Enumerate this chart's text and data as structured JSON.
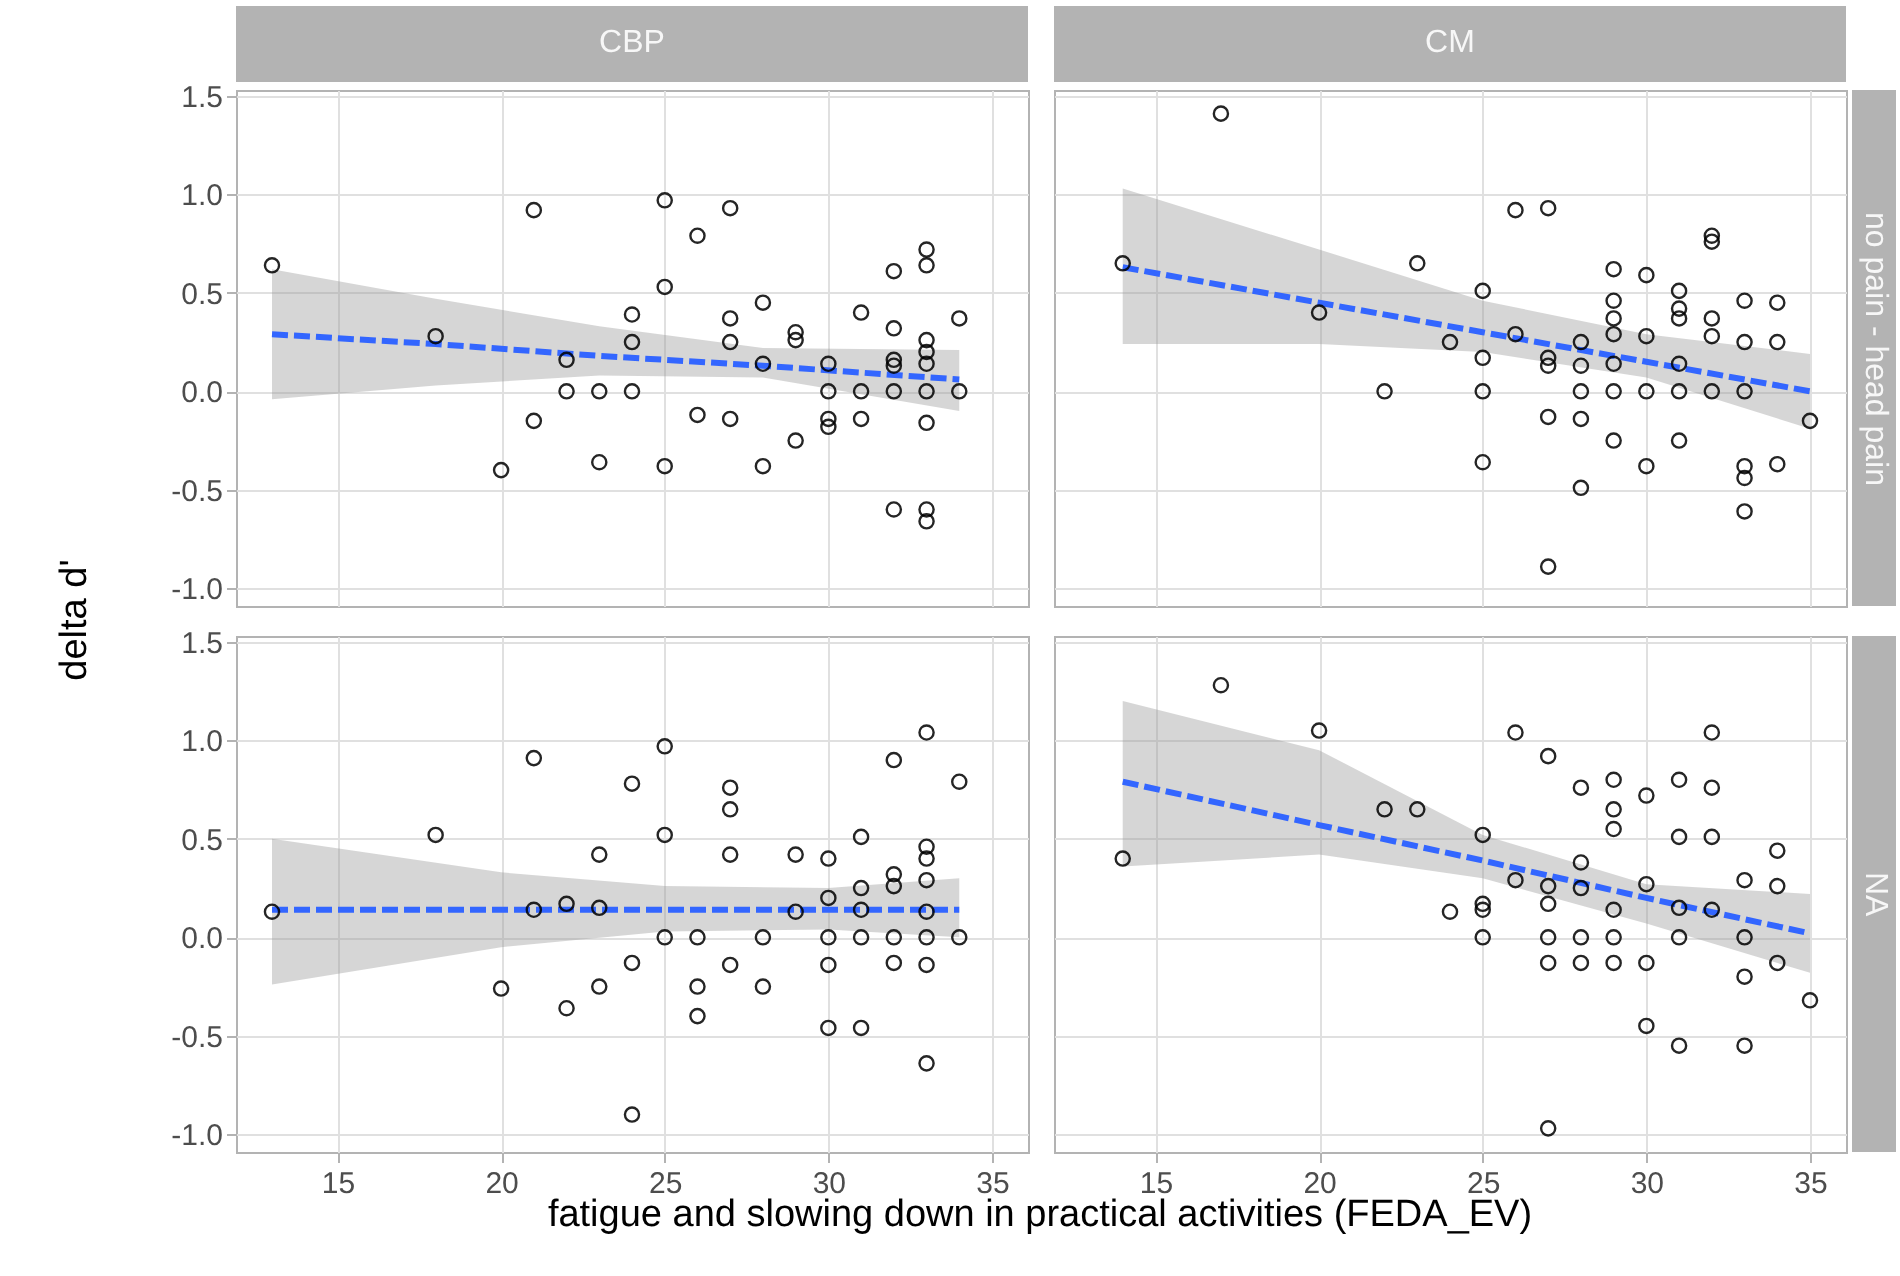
{
  "chart_data": [
    {
      "type": "scatter",
      "title": "CBP",
      "ylabel": "delta d'",
      "xlim": [
        11.9,
        36.1
      ],
      "ylim": [
        -1.09,
        1.53
      ],
      "xticks": [
        15,
        20,
        25,
        30,
        35
      ],
      "yticks": [
        {
          "value": -1,
          "label": "-1.0"
        },
        -0.5,
        {
          "value": 0,
          "label": "0.0"
        },
        0.5,
        {
          "value": 1,
          "label": "1.0"
        },
        1.5
      ],
      "grid": true,
      "tick_labels": "y",
      "series": [
        {
          "type": "scatter",
          "marker": "circle",
          "color": "#000000",
          "x": [
            13,
            18,
            21,
            21,
            20,
            22,
            22,
            23,
            23,
            24,
            24,
            24,
            25,
            25,
            25,
            26,
            26,
            27,
            27,
            27,
            27,
            28,
            28,
            28,
            29,
            29,
            29,
            30,
            30,
            30,
            30,
            31,
            31,
            31,
            32,
            32,
            32,
            32,
            32,
            32,
            33,
            33,
            33,
            33,
            33,
            33,
            33,
            33,
            33,
            34,
            34
          ],
          "values": [
            0.64,
            0.28,
            0.92,
            -0.15,
            -0.4,
            0.16,
            0,
            0,
            -0.36,
            0.39,
            0.25,
            0,
            0.97,
            0.53,
            -0.38,
            0.79,
            -0.12,
            0.93,
            0.37,
            0.25,
            -0.14,
            0.45,
            0.14,
            -0.38,
            0.3,
            0.26,
            -0.25,
            0.14,
            0,
            -0.14,
            -0.18,
            0.4,
            0,
            -0.14,
            0.61,
            0.32,
            0.16,
            0.13,
            0,
            -0.6,
            0.72,
            0.64,
            0.26,
            0.2,
            0.14,
            0,
            -0.16,
            -0.6,
            -0.66,
            0.37,
            0
          ]
        },
        {
          "type": "line",
          "color": "#3366ff",
          "line_style": "dashed",
          "x": [
            13,
            18,
            23,
            28,
            34
          ],
          "values": [
            0.29,
            0.24,
            0.18,
            0.13,
            0.06
          ],
          "lower": [
            -0.04,
            0.03,
            0.08,
            0.07,
            -0.1
          ],
          "upper": [
            0.62,
            0.47,
            0.33,
            0.22,
            0.21
          ]
        }
      ]
    },
    {
      "type": "scatter",
      "title": "CM",
      "y2label": "no pain - head pain",
      "xlim": [
        11.9,
        36.1
      ],
      "ylim": [
        -1.09,
        1.53
      ],
      "xticks": [
        15,
        20,
        25,
        30,
        35
      ],
      "yticks": [
        -1,
        -0.5,
        0,
        0.5,
        1,
        1.5
      ],
      "grid": true,
      "tick_labels": false,
      "series": [
        {
          "type": "scatter",
          "marker": "circle",
          "color": "#000000",
          "x": [
            14,
            17,
            20,
            22,
            23,
            24,
            25,
            25,
            25,
            25,
            26,
            26,
            27,
            27,
            27,
            27,
            27,
            28,
            28,
            28,
            28,
            28,
            29,
            29,
            29,
            29,
            29,
            29,
            29,
            30,
            30,
            30,
            30,
            31,
            31,
            31,
            31,
            31,
            31,
            32,
            32,
            32,
            32,
            32,
            33,
            33,
            33,
            33,
            33,
            33,
            34,
            34,
            34,
            35
          ],
          "values": [
            0.65,
            1.41,
            0.4,
            0,
            0.65,
            0.25,
            0.51,
            0.17,
            0,
            -0.36,
            0.92,
            0.29,
            0.93,
            0.17,
            0.13,
            -0.13,
            -0.89,
            0.25,
            0.13,
            0,
            -0.14,
            -0.49,
            0.62,
            0.46,
            0.37,
            0.29,
            0.14,
            0,
            -0.25,
            0.59,
            0.28,
            0,
            -0.38,
            0.51,
            0.42,
            0.37,
            0.14,
            0,
            -0.25,
            0.79,
            0.76,
            0.37,
            0.28,
            0,
            0.46,
            0.25,
            0,
            -0.38,
            -0.44,
            -0.61,
            0.45,
            0.25,
            -0.37,
            -0.15
          ]
        },
        {
          "type": "line",
          "color": "#3366ff",
          "line_style": "dashed",
          "x": [
            14,
            20,
            25,
            30,
            35
          ],
          "values": [
            0.63,
            0.45,
            0.3,
            0.15,
            0
          ],
          "lower": [
            0.24,
            0.24,
            0.2,
            0.07,
            -0.19
          ],
          "upper": [
            1.03,
            0.72,
            0.46,
            0.29,
            0.19
          ]
        }
      ]
    },
    {
      "type": "scatter",
      "xlabel": "fatigue and slowing down in practical activities (FEDA_EV)",
      "xlim": [
        11.9,
        36.1
      ],
      "ylim": [
        -1.09,
        1.53
      ],
      "xticks": [
        15,
        20,
        25,
        30,
        35
      ],
      "yticks": [
        {
          "value": -1,
          "label": "-1.0"
        },
        -0.5,
        {
          "value": 0,
          "label": "0.0"
        },
        0.5,
        {
          "value": 1,
          "label": "1.0"
        },
        1.5
      ],
      "grid": true,
      "series": [
        {
          "type": "scatter",
          "marker": "circle",
          "color": "#000000",
          "x": [
            13,
            18,
            20,
            21,
            21,
            22,
            22,
            23,
            23,
            23,
            24,
            24,
            24,
            25,
            25,
            25,
            26,
            26,
            26,
            27,
            27,
            27,
            27,
            28,
            28,
            29,
            29,
            30,
            30,
            30,
            30,
            30,
            31,
            31,
            31,
            31,
            31,
            32,
            32,
            32,
            32,
            32,
            33,
            33,
            33,
            33,
            33,
            33,
            33,
            33,
            34,
            34
          ],
          "values": [
            0.13,
            0.52,
            -0.26,
            0.91,
            0.14,
            0.17,
            -0.36,
            0.42,
            0.15,
            -0.25,
            0.78,
            -0.13,
            -0.9,
            0.97,
            0.52,
            0,
            0,
            -0.25,
            -0.4,
            0.76,
            0.65,
            0.42,
            -0.14,
            0,
            -0.25,
            0.42,
            0.13,
            0.4,
            0.2,
            0,
            -0.14,
            -0.46,
            0.51,
            0.25,
            0.14,
            0,
            -0.46,
            0.9,
            0.32,
            0.26,
            0,
            -0.13,
            1.04,
            0.46,
            0.4,
            0.29,
            0.13,
            0,
            -0.14,
            -0.64,
            0.79,
            0
          ]
        },
        {
          "type": "line",
          "color": "#3366ff",
          "line_style": "dashed",
          "x": [
            13,
            20,
            25,
            30,
            34
          ],
          "values": [
            0.14,
            0.14,
            0.14,
            0.14,
            0.14
          ],
          "lower": [
            -0.24,
            -0.05,
            0.03,
            0.04,
            0
          ],
          "upper": [
            0.5,
            0.33,
            0.26,
            0.25,
            0.3
          ]
        }
      ]
    },
    {
      "type": "scatter",
      "y2label": "NA",
      "xlim": [
        11.9,
        36.1
      ],
      "ylim": [
        -1.09,
        1.53
      ],
      "xticks": [
        15,
        20,
        25,
        30,
        35
      ],
      "yticks": [
        -1,
        -0.5,
        0,
        0.5,
        1,
        1.5
      ],
      "grid": true,
      "tick_labels": "x",
      "series": [
        {
          "type": "scatter",
          "marker": "circle",
          "color": "#000000",
          "x": [
            14,
            17,
            20,
            22,
            23,
            24,
            25,
            25,
            25,
            25,
            26,
            26,
            27,
            27,
            27,
            27,
            27,
            27,
            28,
            28,
            28,
            28,
            28,
            29,
            29,
            29,
            29,
            29,
            29,
            30,
            30,
            30,
            30,
            31,
            31,
            31,
            31,
            31,
            32,
            32,
            32,
            32,
            33,
            33,
            33,
            33,
            34,
            34,
            34,
            35
          ],
          "values": [
            0.4,
            1.28,
            1.05,
            0.65,
            0.65,
            0.13,
            0.52,
            0.17,
            0.14,
            0,
            1.04,
            0.29,
            0.92,
            0.26,
            0.17,
            0,
            -0.13,
            -0.97,
            0.76,
            0.38,
            0.25,
            0,
            -0.13,
            0.8,
            0.65,
            0.55,
            0.14,
            0,
            -0.13,
            0.72,
            0.27,
            -0.13,
            -0.45,
            0.8,
            0.51,
            0.15,
            0,
            -0.55,
            1.04,
            0.76,
            0.51,
            0.14,
            0.29,
            0,
            -0.2,
            -0.55,
            0.44,
            0.26,
            -0.13,
            -0.32
          ]
        },
        {
          "type": "line",
          "color": "#3366ff",
          "line_style": "dashed",
          "x": [
            14,
            20,
            25,
            30,
            35
          ],
          "values": [
            0.79,
            0.57,
            0.39,
            0.2,
            0.02
          ],
          "lower": [
            0.36,
            0.42,
            0.3,
            0.07,
            -0.18
          ],
          "upper": [
            1.2,
            0.95,
            0.52,
            0.27,
            0.22
          ]
        }
      ]
    }
  ]
}
